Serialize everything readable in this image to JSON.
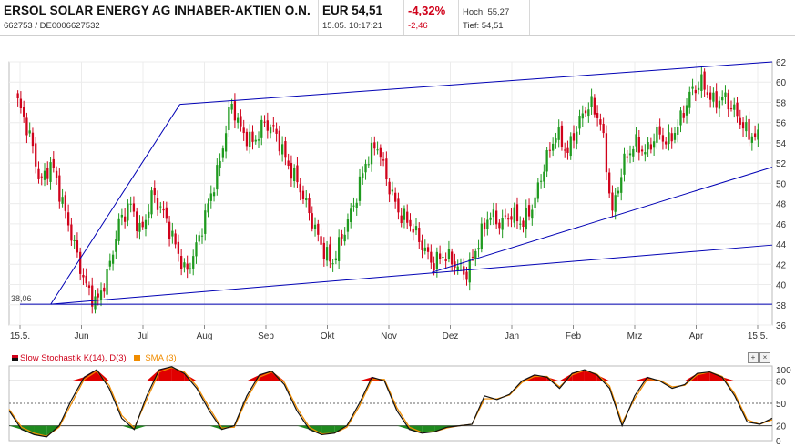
{
  "header": {
    "stock_name": "ERSOL SOLAR ENERGY AG INHABER-AKTIEN O.N.",
    "stock_id": "662753 / DE0006627532",
    "price": "EUR 54,51",
    "timestamp": "15.05. 10:17:21",
    "change_pct": "-4,32%",
    "change_abs": "-2,46",
    "high": "Hoch: 55,27",
    "low": "Tief: 54,51"
  },
  "colors": {
    "up": "#1f9a1f",
    "down": "#d0021b",
    "trend": "#0000b4",
    "k_line": "#111111",
    "d_line": "#f08c00",
    "overbought": "#e00000",
    "oversold": "#1f8a1f"
  },
  "chart_data": [
    {
      "type": "candlestick",
      "x_ticks": [
        "15.5.",
        "Jun",
        "Jul",
        "Aug",
        "Sep",
        "Okt",
        "Nov",
        "Dez",
        "Jan",
        "Feb",
        "Mrz",
        "Apr",
        "15.5."
      ],
      "ylim": [
        36,
        62
      ],
      "y_ticks": [
        36,
        38,
        40,
        42,
        44,
        46,
        48,
        50,
        52,
        54,
        56,
        58,
        60,
        62
      ],
      "low_label": "38,06",
      "close_series": [
        58,
        55,
        50,
        52,
        48,
        44,
        40,
        38.1,
        41,
        46,
        48,
        45,
        49,
        47,
        44,
        41,
        44,
        48,
        52,
        58,
        55,
        54,
        56,
        55,
        52,
        50,
        47,
        44,
        42,
        45,
        48,
        52,
        54,
        50,
        47,
        46,
        44,
        42,
        43,
        42,
        41,
        44,
        47,
        46,
        47,
        46,
        48,
        52,
        55,
        53,
        56,
        58,
        56,
        47,
        52,
        54,
        53,
        55,
        54,
        56,
        59,
        60,
        58,
        58.5,
        57,
        55,
        54.51
      ],
      "trendlines": [
        {
          "from": [
            0.5,
            38.06
          ],
          "to": [
            2.6,
            57.8
          ]
        },
        {
          "from": [
            2.6,
            57.8
          ],
          "to": [
            12.9,
            62
          ]
        },
        {
          "from": [
            0.5,
            38.06
          ],
          "to": [
            12.9,
            43.9
          ]
        },
        {
          "from": [
            6.7,
            41.2
          ],
          "to": [
            12.9,
            51.6
          ]
        },
        {
          "from": [
            0,
            38.06
          ],
          "to": [
            12.9,
            38.06
          ]
        }
      ]
    },
    {
      "type": "line",
      "title": "Slow Stochastik K(14), D(3)",
      "ylim": [
        0,
        100
      ],
      "y_ticks": [
        0,
        20,
        50,
        80,
        100
      ],
      "series": [
        {
          "name": "Slow Stochastik K(14), D(3)",
          "values": [
            40,
            15,
            8,
            5,
            20,
            55,
            85,
            95,
            70,
            30,
            15,
            60,
            95,
            99,
            90,
            70,
            40,
            15,
            20,
            60,
            88,
            93,
            75,
            40,
            15,
            8,
            10,
            20,
            50,
            85,
            80,
            40,
            15,
            10,
            12,
            18,
            20,
            22,
            60,
            55,
            62,
            80,
            88,
            85,
            70,
            90,
            95,
            88,
            70,
            20,
            60,
            85,
            80,
            70,
            75,
            90,
            92,
            85,
            60,
            25,
            22,
            30
          ]
        },
        {
          "name": "SMA (3)",
          "values": [
            42,
            18,
            10,
            6,
            18,
            50,
            82,
            93,
            74,
            34,
            17,
            55,
            92,
            98,
            92,
            73,
            44,
            17,
            18,
            56,
            85,
            92,
            78,
            44,
            18,
            9,
            10,
            18,
            46,
            82,
            82,
            44,
            18,
            11,
            12,
            17,
            20,
            22,
            56,
            56,
            61,
            78,
            86,
            86,
            72,
            88,
            94,
            89,
            73,
            24,
            56,
            82,
            81,
            72,
            74,
            88,
            92,
            86,
            63,
            28,
            22,
            28
          ]
        }
      ]
    }
  ]
}
